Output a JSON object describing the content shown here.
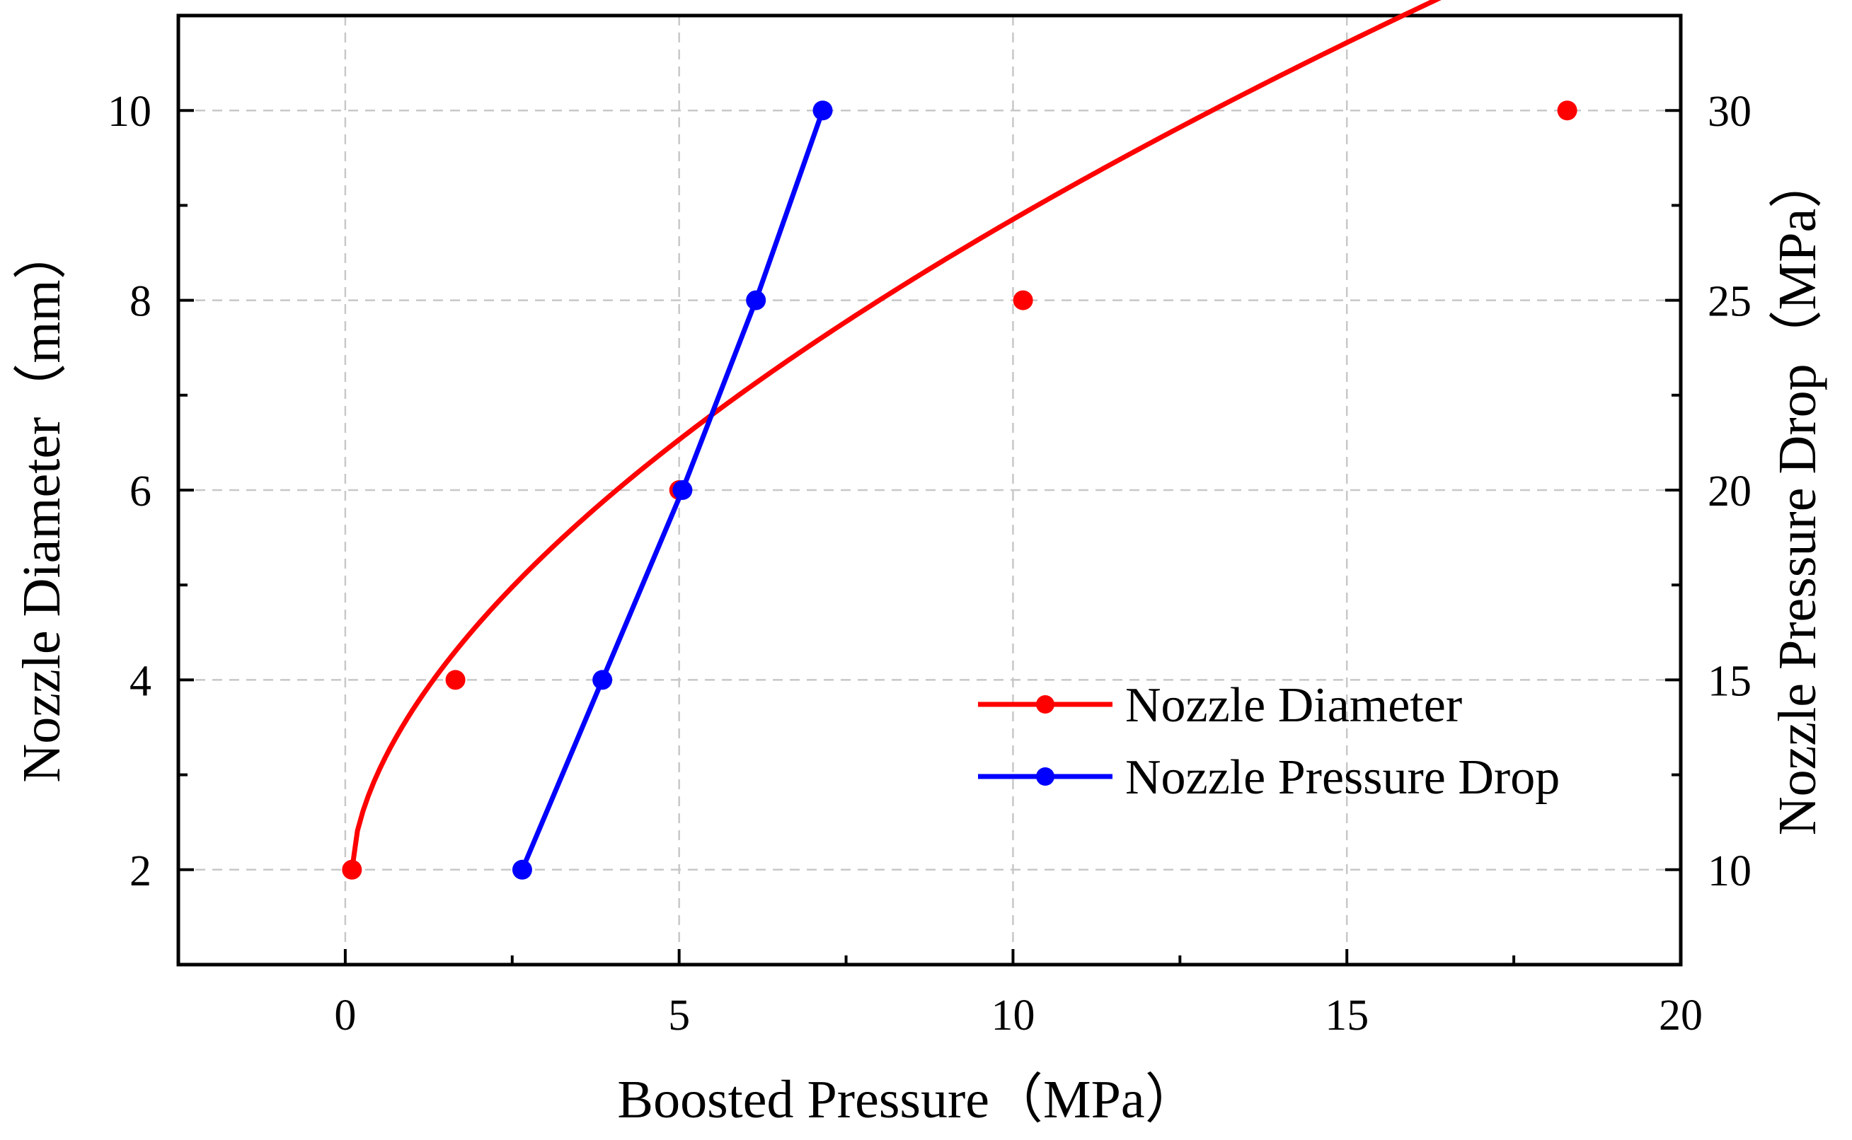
{
  "chart_data": {
    "type": "line",
    "title": "",
    "xlabel": "Boosted Pressure（MPa）",
    "ylabel_left": "Nozzle Diameter（mm）",
    "ylabel_right": "Nozzle Pressure Drop（MPa）",
    "xlim": [
      -2.5,
      20
    ],
    "ylim_left": [
      1,
      11
    ],
    "ylim_right": [
      7.5,
      32.5
    ],
    "x_ticks": [
      0,
      5,
      10,
      15,
      20
    ],
    "x_tick_labels": [
      "0",
      "5",
      "10",
      "15",
      "20"
    ],
    "y_left_ticks": [
      2,
      4,
      6,
      8,
      10
    ],
    "y_left_tick_labels": [
      "2",
      "4",
      "6",
      "8",
      "10"
    ],
    "y_right_ticks": [
      10,
      15,
      20,
      25,
      30
    ],
    "y_right_tick_labels": [
      "10",
      "15",
      "20",
      "25",
      "30"
    ],
    "grid": true,
    "legend_position": "lower-right",
    "series": [
      {
        "name": "Nozzle Diameter",
        "axis": "left",
        "color": "#ff0000",
        "x": [
          0.1,
          1.65,
          5.0,
          10.15,
          18.3
        ],
        "y": [
          2,
          4,
          6,
          8,
          10
        ],
        "fit_curve": "smooth",
        "fit_function": "y = 1.78 * (x - 0.1) ^ 0.588 + 2"
      },
      {
        "name": "Nozzle Pressure Drop",
        "axis": "right",
        "color": "#0000ff",
        "x": [
          2.65,
          3.85,
          5.05,
          6.15,
          7.15
        ],
        "y": [
          10,
          15,
          20,
          25,
          30
        ],
        "fit_curve": "polyline"
      }
    ]
  }
}
